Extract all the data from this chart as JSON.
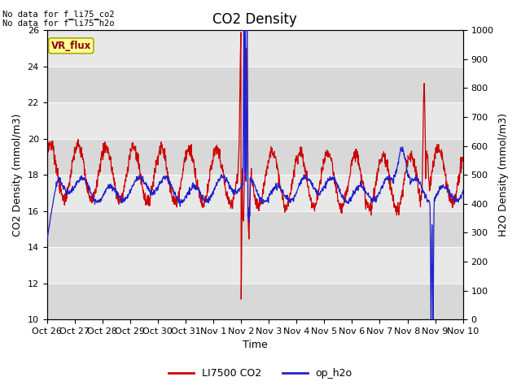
{
  "title": "CO2 Density",
  "xlabel": "Time",
  "ylabel_left": "CO2 Density (mmol/m3)",
  "ylabel_right": "H2O Density (mmol/m3)",
  "ylim_left": [
    10,
    26
  ],
  "ylim_right": [
    0,
    1000
  ],
  "yticks_left": [
    10,
    12,
    14,
    16,
    18,
    20,
    22,
    24,
    26
  ],
  "yticks_right": [
    0,
    100,
    200,
    300,
    400,
    500,
    600,
    700,
    800,
    900,
    1000
  ],
  "xtick_labels": [
    "Oct 26",
    "Oct 27",
    "Oct 28",
    "Oct 29",
    "Oct 30",
    "Oct 31",
    "Nov 1",
    "Nov 2",
    "Nov 3",
    "Nov 4",
    "Nov 5",
    "Nov 6",
    "Nov 7",
    "Nov 8",
    "Nov 9",
    "Nov 10"
  ],
  "no_data_text1": "No data for f_li75_co2",
  "no_data_text2": "No data for f̅li75̅h2o",
  "vr_flux_label": "VR_flux",
  "legend_entries": [
    "LI7500 CO2",
    "op_h2o"
  ],
  "line_colors": [
    "#cc0000",
    "#2222cc"
  ],
  "background_color": "#ffffff",
  "band_light": "#e8e8e8",
  "band_dark": "#d8d8d8",
  "title_fontsize": 12,
  "axis_fontsize": 9,
  "tick_fontsize": 8
}
